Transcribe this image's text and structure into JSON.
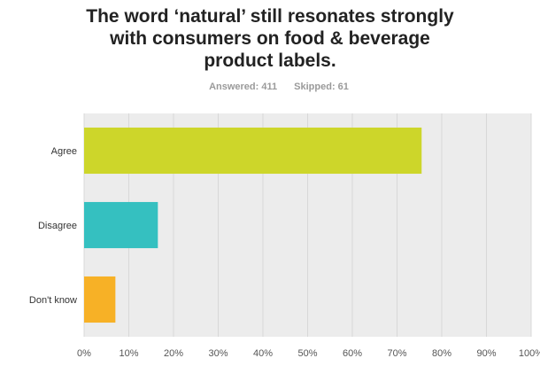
{
  "title": "The word ‘natural’ still resonates strongly\nwith consumers on food & beverage\nproduct labels.",
  "stats": {
    "answered": "Answered: 411",
    "skipped": "Skipped: 61"
  },
  "chart_data": {
    "type": "bar",
    "orientation": "horizontal",
    "title": "The word ‘natural’ still resonates strongly with consumers on food & beverage product labels.",
    "categories": [
      "Agree",
      "Disagree",
      "Don't know"
    ],
    "values": [
      75.5,
      16.5,
      7.0
    ],
    "colors": [
      "#cdd62a",
      "#35c0c0",
      "#f7b126"
    ],
    "xlim": [
      0,
      100
    ],
    "xticks": [
      "0%",
      "10%",
      "20%",
      "30%",
      "40%",
      "50%",
      "60%",
      "70%",
      "80%",
      "90%",
      "100%"
    ],
    "grid": true
  }
}
